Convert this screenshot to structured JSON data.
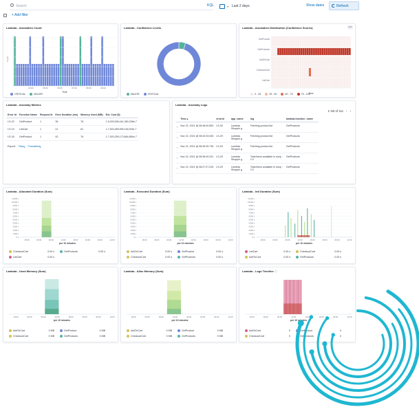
{
  "topbar": {
    "search_placeholder": "Search",
    "kql_label": "KQL",
    "date_range": "Last 2 days",
    "show_dates": "Show dates",
    "refresh": "Refresh"
  },
  "filterbar": {
    "add_filter": "+ Add filter"
  },
  "panels": {
    "anomalies_count": {
      "title": "Lambda - Anomalies Count",
      "ylabel": "Count",
      "xlabel": "Time",
      "xticks": [
        "04:00",
        "05:00",
        "06:00",
        "07:00",
        "08:00",
        "09:00"
      ],
      "legend": [
        "CRITICAL",
        "MAJOR"
      ]
    },
    "confidence_levels": {
      "title": "Lambda - Confidence Levels",
      "legend": [
        "MAJOR",
        "CRITICAL"
      ]
    },
    "anomalies_distribution": {
      "title": "Lambda - Anomalies Distribution (Confidence Scores)",
      "rows": [
        "GetProduct",
        "GetProducts",
        "AddToCart",
        "CheckoutCart",
        "ListCart"
      ],
      "xlabel": "Time",
      "legend": [
        "0 - 25",
        "25 - 50",
        "50 - 75",
        "75 - 100"
      ]
    },
    "anomaly_metrics": {
      "title": "Lambda - Anomaly Metrics",
      "headers": [
        "Error Id",
        "Function Name",
        "Request Id",
        "Exec Duration (ms)",
        "Memory Used (MB)",
        "Est. Cost ($)"
      ],
      "rows": [
        [
          "LS-22",
          "GetProduct",
          "1",
          "36",
          "76",
          "1.5,003,006,441,360,328e-7"
        ],
        [
          "LS-19",
          "ListCart",
          "1",
          "21",
          "81",
          "1.7,543,489,595,118,003e-7"
        ],
        [
          "LS-18",
          "GetProduct",
          "1",
          "43",
          "76",
          "1.7,920,259,173,664,854e-7"
        ]
      ],
      "export": "Export:",
      "raw": "Raw",
      "formatted": "Formatted"
    },
    "anomaly_logs": {
      "title": "Lambda - Anomaly Logs",
      "pagination": "1–50 of 111",
      "headers": [
        "Time",
        "errorId",
        "app_name",
        "log",
        "lambda.function_name"
      ],
      "rows": [
        [
          "Nov 22, 2021 @ 08:48:00.853",
          "LS-30",
          "Lambda Shoppin g",
          "Fetching product list",
          "GetProducts"
        ],
        [
          "Nov 22, 2021 @ 08:42:03.526",
          "LS-29",
          "Lambda Shoppin g",
          "Fetching product list",
          "GetProducts"
        ],
        [
          "Nov 22, 2021 @ 08:39:25.735",
          "LS-29",
          "Lambda Shoppin g",
          "Fetching product list",
          "GetProducts"
        ],
        [
          "Nov 22, 2021 @ 08:38:49.201",
          "LS-29",
          "Lambda Shoppin g",
          "Total items available in shop : 2 0",
          "GetProducts"
        ],
        [
          "Nov 22, 2021 @ 08:27:27.225",
          "LS-29",
          "Lambda Shoppin g",
          "Total items available in shop : 2 0",
          "GetProducts"
        ]
      ]
    },
    "allocated_duration": {
      "title": "Lambda - Allocated Duration (Sum)",
      "yticks": [
        "11,000 s",
        "10,000 s",
        "9,000 s",
        "8,000 s",
        "7,000 s",
        "6,000 s",
        "5,000 s",
        "4,000 s",
        "3,000 s",
        "2,000 s",
        "1,000 s",
        "0 s"
      ],
      "xticks": [
        "18:00",
        "00:00",
        "06:00",
        "12:00",
        "18:00",
        "00:00",
        "06:00",
        "12:00"
      ],
      "xlabel": "per 10 minutes",
      "legend": [
        [
          "CheckoutCart",
          "0.00 s",
          "GetProducts",
          "0.00 s"
        ],
        [
          "ListCart",
          "0.00 s",
          "",
          ""
        ]
      ]
    },
    "executed_duration": {
      "title": "Lambda - Executed Duration (Sum)",
      "yticks": [
        "11,000 s",
        "10,000 s",
        "9,000 s",
        "8,000 s",
        "7,000 s",
        "6,000 s",
        "5,000 s",
        "4,000 s",
        "3,000 s",
        "2,000 s",
        "1,000 s",
        "0 s"
      ],
      "xticks": [
        "18:00",
        "00:00",
        "06:00",
        "12:00",
        "18:00",
        "00:00",
        "06:00",
        "12:00"
      ],
      "xlabel": "per 10 minutes",
      "legend": [
        [
          "AddToCart",
          "0.00 s",
          "GetProduct",
          "0.00 s"
        ],
        [
          "CheckoutCart",
          "0.00 s",
          "GetProducts",
          "0.00 s"
        ]
      ]
    },
    "init_duration": {
      "title": "Lambda - Init Duration (Sum)",
      "yticks": [
        "11,000 s",
        "10,000 s",
        "9,000 s",
        "8,000 s",
        "7,000 s",
        "6,000 s",
        "5,000 s",
        "4,000 s",
        "3,000 s",
        "2,000 s",
        "1,000 s",
        "0 s"
      ],
      "xticks": [
        "18:00",
        "00:00",
        "06:00",
        "12:00",
        "18:00",
        "00:00",
        "06:00",
        "12:00"
      ],
      "xlabel": "per 10 minutes",
      "legend": [
        [
          "ListCart",
          "0.00 s",
          "CheckoutCart",
          "0.00 s"
        ],
        [
          "AddToCart",
          "0.00 s",
          "GetProducts",
          "0.00 s"
        ]
      ]
    },
    "used_memory": {
      "title": "Lambda - Used Memory (Sum)",
      "xticks": [
        "18:00",
        "00:00",
        "06:00",
        "12:00",
        "18:00",
        "00:00",
        "06:00",
        "12:00"
      ],
      "xlabel": "per 10 minutes",
      "legend": [
        [
          "AddToCart",
          "0 MB",
          "GetProduct",
          "0 MB"
        ],
        [
          "CheckoutCart",
          "0 MB",
          "GetProducts",
          "0 MB"
        ]
      ]
    },
    "alloc_memory": {
      "title": "Lambda - Alloc Memory (Sum)",
      "xticks": [
        "18:00",
        "00:00",
        "06:00",
        "12:00",
        "18:00",
        "00:00",
        "06:00",
        "12:00"
      ],
      "xlabel": "per 10 minutes",
      "legend": [
        [
          "AddToCart",
          "0 MB",
          "GetProduct",
          "0 MB"
        ],
        [
          "CheckoutCart",
          "0 MB",
          "GetProducts",
          "0 MB"
        ]
      ]
    },
    "logs_timeline": {
      "title": "Lambda - Logs Timeline",
      "xticks": [
        "18:00",
        "00:00",
        "06:00",
        "12:00",
        "18:00",
        "00:00",
        "06:00",
        "12:00"
      ],
      "xlabel": "per 10 minutes",
      "legend": [
        [
          "AddToCart",
          "0",
          "GetProduct",
          "0"
        ],
        [
          "CheckoutCart",
          "0",
          "GetProducts",
          "0"
        ]
      ]
    }
  },
  "colors": {
    "blue": "#6f87d8",
    "green": "#54b399",
    "lightgreen": "#b5e08e",
    "pink": "#d36086",
    "teal": "#54b3a9",
    "red": "#c0392b",
    "yellow": "#d6bf57",
    "cyan": "#1fb7d1"
  },
  "chart_data": [
    {
      "type": "bar",
      "title": "Lambda - Anomalies Count",
      "series": [
        {
          "name": "CRITICAL",
          "values": [
            0,
            1,
            1,
            1,
            1,
            1,
            1,
            1,
            1,
            1,
            1,
            1,
            1,
            1,
            1,
            1,
            1,
            1,
            1,
            1,
            1,
            0,
            1,
            1,
            1,
            1,
            1,
            1,
            1,
            1,
            0,
            1,
            1,
            1,
            1,
            1,
            1,
            1,
            1,
            1,
            1,
            1,
            1,
            1,
            1,
            1
          ]
        },
        {
          "name": "MAJOR",
          "values": [
            1,
            0,
            0,
            0,
            0,
            0,
            0,
            0,
            0,
            0,
            0,
            0,
            0,
            0,
            0,
            0,
            0,
            0,
            0,
            0,
            0,
            1,
            0,
            0,
            0,
            0,
            0,
            0,
            0,
            0,
            1,
            0,
            0,
            0,
            0,
            0,
            0,
            0,
            0,
            0,
            0,
            0,
            0,
            0,
            0,
            0
          ]
        }
      ],
      "tall": [
        0,
        21,
        30
      ],
      "spikes": [
        7,
        13,
        22,
        35,
        40
      ]
    },
    {
      "type": "pie",
      "title": "Lambda - Confidence Levels",
      "slices": [
        {
          "name": "MAJOR",
          "value": 5
        },
        {
          "name": "CRITICAL",
          "value": 95
        }
      ]
    },
    {
      "type": "heatmap",
      "title": "Lambda - Anomalies Distribution (Confidence Scores)",
      "rows": [
        "GetProduct",
        "GetProducts",
        "AddToCart",
        "CheckoutCart",
        "ListCart"
      ]
    }
  ]
}
